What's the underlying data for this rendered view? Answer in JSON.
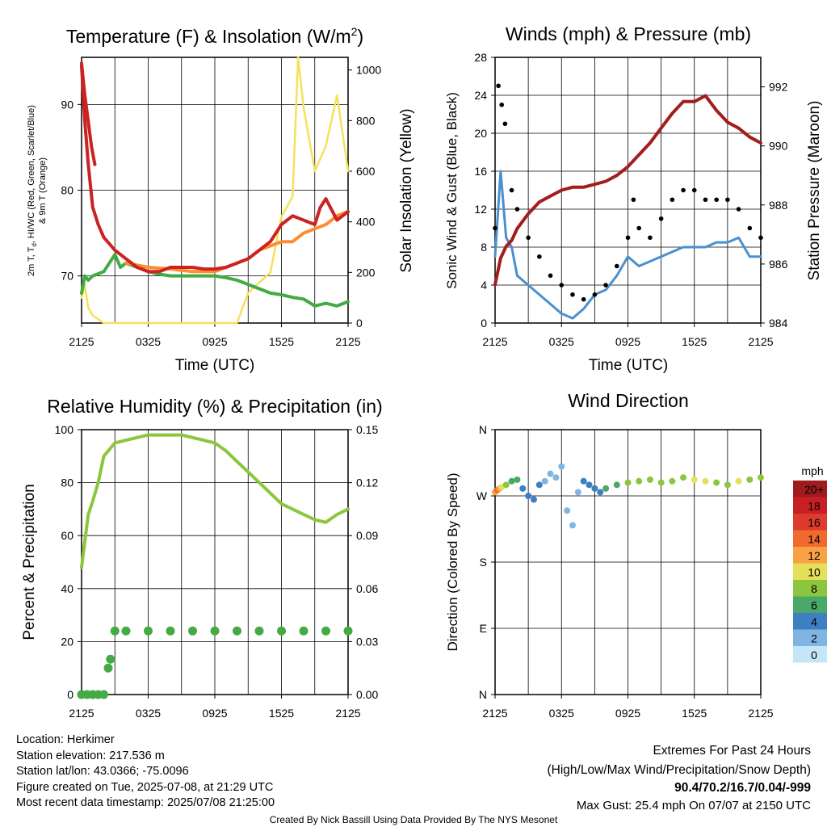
{
  "footer": {
    "location": "Location: Herkimer",
    "elevation": "Station elevation: 217.536 m",
    "latlon": "Station lat/lon: 43.0366; -75.0096",
    "created": "Figure created on Tue, 2025-07-08, at 21:29 UTC",
    "recent": "Most recent data timestamp: 2025/07/08 21:25:00",
    "extremes_title": "Extremes For Past 24 Hours",
    "extremes_sub": "(High/Low/Max Wind/Precipitation/Snow Depth)",
    "extremes_values": "90.4/70.2/16.7/0.04/-999",
    "max_gust": "Max Gust: 25.4 mph On 07/07 at 2150 UTC",
    "credit": "Created By Nick Bassill Using Data Provided By The NYS Mesonet"
  },
  "colors": {
    "temp": "#cc2222",
    "dewpoint": "#44aa44",
    "heatindex": "#cc2222",
    "temp9m": "#ff8c2e",
    "solar": "#f5e15a",
    "wind": "#4a90d0",
    "gust": "#000000",
    "pressure": "#a51c1c",
    "rh": "#8cc63f",
    "precip": "#44aa44",
    "extremes": "#cc2222",
    "credit": "#999999"
  },
  "chart_data": [
    {
      "type": "line",
      "title": "Temperature (F) & Insolation (W/m",
      "title_sup": "2",
      "title_end": ")",
      "xlabel": "Time (UTC)",
      "ylabel_line1": "2m T, T",
      "ylabel_sub": "d",
      "ylabel_rest": ", HI/WC (Red, Green, Scarlet/Blue)",
      "ylabel_line2": "& 9m T (Orange)",
      "y2label": "Solar Insolation (Yellow)",
      "xticks": [
        "2125",
        "0325",
        "0925",
        "1525",
        "2125"
      ],
      "xlim": [
        0,
        24
      ],
      "ylim": [
        64.5,
        95.5
      ],
      "yticks": [
        70,
        80,
        90
      ],
      "y2lim": [
        0,
        1050
      ],
      "y2ticks": [
        0,
        200,
        400,
        600,
        800,
        1000
      ],
      "series": [
        {
          "key": "temp",
          "x": [
            0,
            0.3,
            0.6,
            1,
            1.5,
            2,
            3,
            4,
            5,
            6,
            7,
            8,
            9,
            10,
            11,
            12,
            13,
            14,
            15,
            16,
            17,
            18,
            19,
            20,
            21,
            21.5,
            22,
            23,
            24
          ],
          "values": [
            94.5,
            88,
            83,
            78,
            76,
            74.5,
            73,
            72,
            71,
            70.5,
            70.5,
            71,
            71,
            71,
            70.8,
            70.8,
            71,
            71.5,
            72,
            73,
            74,
            76,
            77,
            76.5,
            76,
            78,
            79,
            76.5,
            77.5
          ]
        },
        {
          "key": "dewpoint",
          "x": [
            0,
            0.3,
            0.6,
            1,
            2,
            3,
            3.5,
            4,
            5,
            6,
            7,
            8,
            9,
            10,
            11,
            12,
            13,
            14,
            15,
            16,
            17,
            18,
            19,
            20,
            21,
            22,
            23,
            24
          ],
          "values": [
            68,
            70,
            69.5,
            70,
            70.5,
            72.5,
            71,
            71.5,
            71,
            70.5,
            70.2,
            70,
            70,
            70,
            70,
            70,
            69.8,
            69.5,
            69,
            68.5,
            68,
            67.8,
            67.5,
            67.3,
            66.5,
            66.8,
            66.5,
            67
          ]
        },
        {
          "key": "heatindex",
          "x": [
            0,
            0.3,
            0.6,
            0.9,
            1.2
          ],
          "values": [
            94.8,
            91,
            88,
            85,
            83
          ]
        },
        {
          "key": "temp9m",
          "x": [
            4,
            6,
            8,
            10,
            12,
            14,
            15,
            16,
            17,
            18,
            19,
            20,
            21,
            22,
            23,
            24
          ],
          "values": [
            71.5,
            71,
            70.8,
            70.5,
            70.5,
            71.5,
            72,
            73,
            73.5,
            74,
            74,
            75,
            75.5,
            76,
            77,
            77.5
          ]
        },
        {
          "key": "solar",
          "axis": "y2",
          "x": [
            0,
            0.3,
            0.6,
            1,
            2,
            3,
            4,
            6,
            8,
            10,
            12,
            13,
            14,
            15,
            16,
            17,
            18,
            19,
            19.5,
            20,
            21,
            22,
            23,
            24
          ],
          "values": [
            100,
            150,
            60,
            30,
            0,
            0,
            0,
            0,
            0,
            0,
            0,
            0,
            0,
            120,
            160,
            200,
            420,
            500,
            1050,
            850,
            600,
            700,
            900,
            600
          ]
        }
      ]
    },
    {
      "type": "line",
      "title": "Winds (mph) & Pressure (mb)",
      "xlabel": "Time (UTC)",
      "ylabel": "Sonic Wind & Gust (Blue, Black)",
      "y2label": "Station Pressure (Maroon)",
      "xticks": [
        "2125",
        "0325",
        "0925",
        "1525",
        "2125"
      ],
      "xlim": [
        0,
        24
      ],
      "ylim": [
        0,
        28
      ],
      "yticks": [
        0,
        4,
        8,
        12,
        16,
        20,
        24,
        28
      ],
      "y2lim": [
        984,
        993
      ],
      "y2ticks": [
        984,
        986,
        988,
        990,
        992
      ],
      "series": [
        {
          "key": "wind",
          "x": [
            0,
            0.5,
            1,
            1.5,
            2,
            3,
            4,
            5,
            6,
            7,
            8,
            9,
            10,
            11,
            12,
            13,
            14,
            15,
            16,
            17,
            18,
            19,
            20,
            21,
            22,
            23,
            24
          ],
          "values": [
            7,
            16,
            9,
            8,
            5,
            4,
            3,
            2,
            1,
            0.5,
            1.5,
            3,
            3.5,
            5,
            7,
            6,
            6.5,
            7,
            7.5,
            8,
            8,
            8,
            8.5,
            8.5,
            9,
            7,
            7
          ]
        },
        {
          "key": "gust",
          "x": [
            0,
            0.3,
            0.6,
            0.9,
            1.5,
            2,
            3,
            4,
            5,
            6,
            7,
            8,
            9,
            10,
            11,
            12,
            12.5,
            13,
            14,
            15,
            16,
            17,
            18,
            19,
            20,
            21,
            22,
            23,
            24
          ],
          "values": [
            10,
            25,
            23,
            21,
            14,
            12,
            9,
            7,
            5,
            4,
            3,
            2.5,
            3,
            4,
            6,
            9,
            13,
            10,
            9,
            11,
            13,
            14,
            14,
            13,
            13,
            13,
            12,
            10,
            9
          ]
        },
        {
          "key": "pressure",
          "axis": "y2",
          "x": [
            0,
            0.5,
            1,
            1.5,
            2,
            3,
            4,
            5,
            6,
            7,
            8,
            9,
            10,
            11,
            12,
            13,
            14,
            15,
            16,
            17,
            18,
            19,
            20,
            21,
            22,
            23,
            24
          ],
          "values": [
            985.3,
            986.2,
            986.6,
            986.8,
            987.2,
            987.7,
            988.1,
            988.3,
            988.5,
            988.6,
            988.6,
            988.7,
            988.8,
            989,
            989.3,
            989.7,
            990.1,
            990.6,
            991.1,
            991.5,
            991.5,
            991.7,
            991.2,
            990.8,
            990.6,
            990.3,
            990.1
          ]
        }
      ]
    },
    {
      "type": "line",
      "title": "Relative Humidity (%) & Precipitation (in)",
      "ylabel": "Percent & Precipitation",
      "xticks": [
        "2125",
        "0325",
        "0925",
        "1525",
        "2125"
      ],
      "xlim": [
        0,
        24
      ],
      "ylim": [
        0,
        100
      ],
      "yticks": [
        0,
        20,
        40,
        60,
        80,
        100
      ],
      "y2lim": [
        0,
        0.15
      ],
      "y2ticks": [
        "0.00",
        "0.03",
        "0.06",
        "0.09",
        "0.12",
        "0.15"
      ],
      "series": [
        {
          "key": "rh",
          "x": [
            0,
            0.3,
            0.6,
            1,
            1.5,
            2,
            3,
            4,
            5,
            6,
            7,
            8,
            9,
            10,
            11,
            12,
            13,
            14,
            15,
            16,
            17,
            18,
            19,
            20,
            21,
            22,
            23,
            24
          ],
          "values": [
            48,
            58,
            68,
            73,
            80,
            90,
            95,
            96,
            97,
            98,
            98,
            98,
            98,
            97,
            96,
            95,
            92,
            88,
            84,
            80,
            76,
            72,
            70,
            68,
            66,
            65,
            68,
            70
          ]
        },
        {
          "key": "precip",
          "axis": "y2",
          "x": [
            0,
            0.5,
            1,
            1.5,
            2,
            2.4,
            2.6,
            3,
            4,
            6,
            8,
            10,
            12,
            14,
            16,
            18,
            20,
            22,
            24
          ],
          "values": [
            0,
            0,
            0,
            0,
            0,
            0.015,
            0.02,
            0.036,
            0.036,
            0.036,
            0.036,
            0.036,
            0.036,
            0.036,
            0.036,
            0.036,
            0.036,
            0.036,
            0.036
          ]
        }
      ]
    },
    {
      "type": "scatter",
      "title": "Wind Direction",
      "ylabel": "Direction (Colored By Speed)",
      "xticks": [
        "2125",
        "0325",
        "0925",
        "1525",
        "2125"
      ],
      "xlim": [
        0,
        24
      ],
      "ylim": [
        0,
        360
      ],
      "yticks": [
        "N",
        "E",
        "S",
        "W",
        "N"
      ],
      "legend_title": "mph",
      "legend_labels": [
        "20+",
        "18",
        "16",
        "14",
        "12",
        "10",
        "8",
        "6",
        "4",
        "2",
        "0"
      ],
      "legend_colors": [
        "#9e1b1e",
        "#c81f25",
        "#de3b2e",
        "#f0692e",
        "#f9a245",
        "#e5e05a",
        "#8cc63f",
        "#4aa86a",
        "#3d7fc0",
        "#7fb5e3",
        "#c4e6f8"
      ],
      "x": [
        0,
        0.2,
        0.4,
        0.6,
        1,
        1.5,
        2,
        2.5,
        3,
        3.5,
        4,
        4.5,
        5,
        5.5,
        6,
        6.5,
        7,
        7.5,
        8,
        8.5,
        9,
        9.5,
        10,
        11,
        12,
        13,
        14,
        15,
        16,
        17,
        18,
        19,
        20,
        21,
        22,
        23,
        24
      ],
      "values": [
        275,
        278,
        280,
        282,
        285,
        290,
        292,
        280,
        270,
        265,
        285,
        290,
        300,
        295,
        310,
        250,
        230,
        275,
        290,
        285,
        280,
        275,
        280,
        285,
        288,
        290,
        292,
        288,
        290,
        295,
        292,
        290,
        288,
        285,
        290,
        292,
        295
      ],
      "speeds": [
        12,
        13,
        12,
        10,
        7,
        6,
        5,
        4,
        4,
        3,
        3,
        2,
        1,
        1,
        1,
        1,
        2,
        2,
        3,
        3,
        3,
        4,
        5,
        6,
        7,
        7,
        7,
        8,
        8,
        8,
        9,
        9,
        8,
        8,
        9,
        8,
        8
      ]
    }
  ]
}
